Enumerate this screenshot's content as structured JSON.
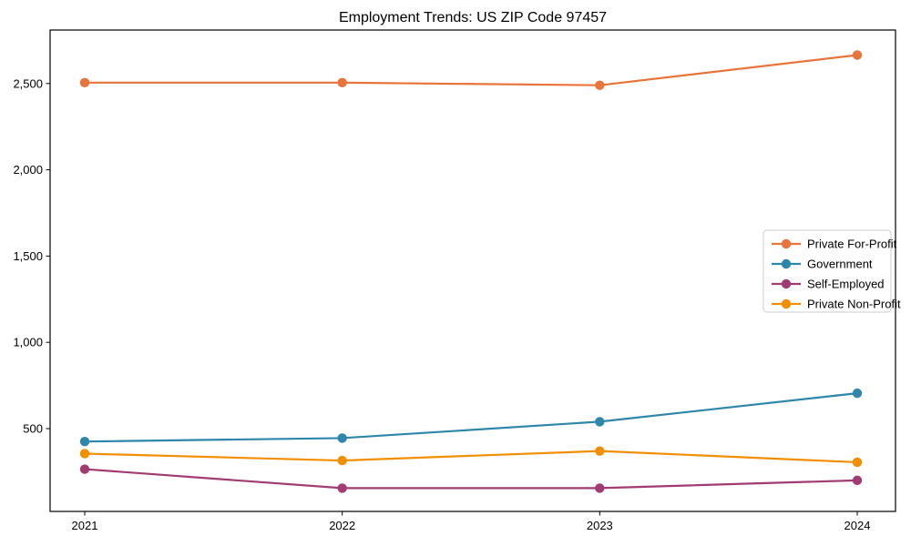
{
  "chart_data": {
    "type": "line",
    "title": "Employment Trends: US ZIP Code 97457",
    "xlabel": "",
    "ylabel": "",
    "x": [
      "2021",
      "2022",
      "2023",
      "2024"
    ],
    "series": [
      {
        "name": "Private For-Profit",
        "color": "#E8743B",
        "values": [
          2505,
          2505,
          2490,
          2665
        ]
      },
      {
        "name": "Government",
        "color": "#2E86AB",
        "values": [
          425,
          445,
          540,
          705
        ]
      },
      {
        "name": "Self-Employed",
        "color": "#A23B72",
        "values": [
          265,
          155,
          155,
          200
        ]
      },
      {
        "name": "Private Non-Profit",
        "color": "#F18F01",
        "values": [
          355,
          315,
          370,
          305
        ]
      }
    ],
    "ylim": [
      20,
      2810
    ],
    "yticks": [
      500,
      1000,
      1500,
      2000,
      2500
    ],
    "ytick_labels": [
      "500",
      "1,000",
      "1,500",
      "2,000",
      "2,500"
    ],
    "grid": false,
    "legend_position": "center right",
    "marker": "circle",
    "background_color": "#ffffff",
    "axis_color": "#000000",
    "legend_border_color": "#cccccc",
    "legend_background": "#ffffff",
    "text_color": "#000000"
  }
}
